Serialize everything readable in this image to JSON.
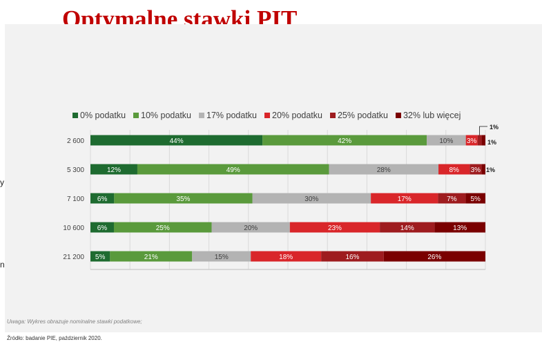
{
  "slide": {
    "title": "Optymalne stawki PIT",
    "note": "Uwaga: Wykres obrazuje nominalne stawki podatkowe;",
    "source": "Źródło: badanie PIE, październik 2020.",
    "side_fragments": [
      "y",
      "n"
    ]
  },
  "colors": {
    "title": "#c00000",
    "series": [
      "#1e6b30",
      "#5a9a3c",
      "#b3b3b3",
      "#d9262a",
      "#9e1c1f",
      "#7a0000"
    ]
  },
  "chart_data": {
    "type": "bar",
    "orientation": "horizontal",
    "stacked": true,
    "categories": [
      "2 600",
      "5 300",
      "7 100",
      "10 600",
      "21 200"
    ],
    "series": [
      {
        "name": "0% podatku",
        "values": [
          44,
          12,
          6,
          6,
          5
        ],
        "labels": [
          "44%",
          "12%",
          "6%",
          "6%",
          "5%"
        ]
      },
      {
        "name": "10% podatku",
        "values": [
          42,
          49,
          35,
          25,
          21
        ],
        "labels": [
          "42%",
          "49%",
          "35%",
          "25%",
          "21%"
        ]
      },
      {
        "name": "17% podatku",
        "values": [
          10,
          28,
          30,
          20,
          15
        ],
        "labels": [
          "10%",
          "28%",
          "30%",
          "20%",
          "15%"
        ]
      },
      {
        "name": "20% podatku",
        "values": [
          3,
          8,
          17,
          23,
          18
        ],
        "labels": [
          "3%",
          "8%",
          "17%",
          "23%",
          "18%"
        ]
      },
      {
        "name": "25% podatku",
        "values": [
          1,
          3,
          7,
          14,
          16
        ],
        "labels": [
          "1%",
          "3%",
          "7%",
          "14%",
          "16%"
        ]
      },
      {
        "name": "32% lub więcej",
        "values": [
          1,
          1,
          5,
          13,
          26
        ],
        "labels": [
          "1%",
          "1%",
          "5%",
          "13%",
          "26%"
        ]
      }
    ],
    "xlim": [
      0,
      100
    ],
    "grid": true,
    "legend_position": "top"
  }
}
